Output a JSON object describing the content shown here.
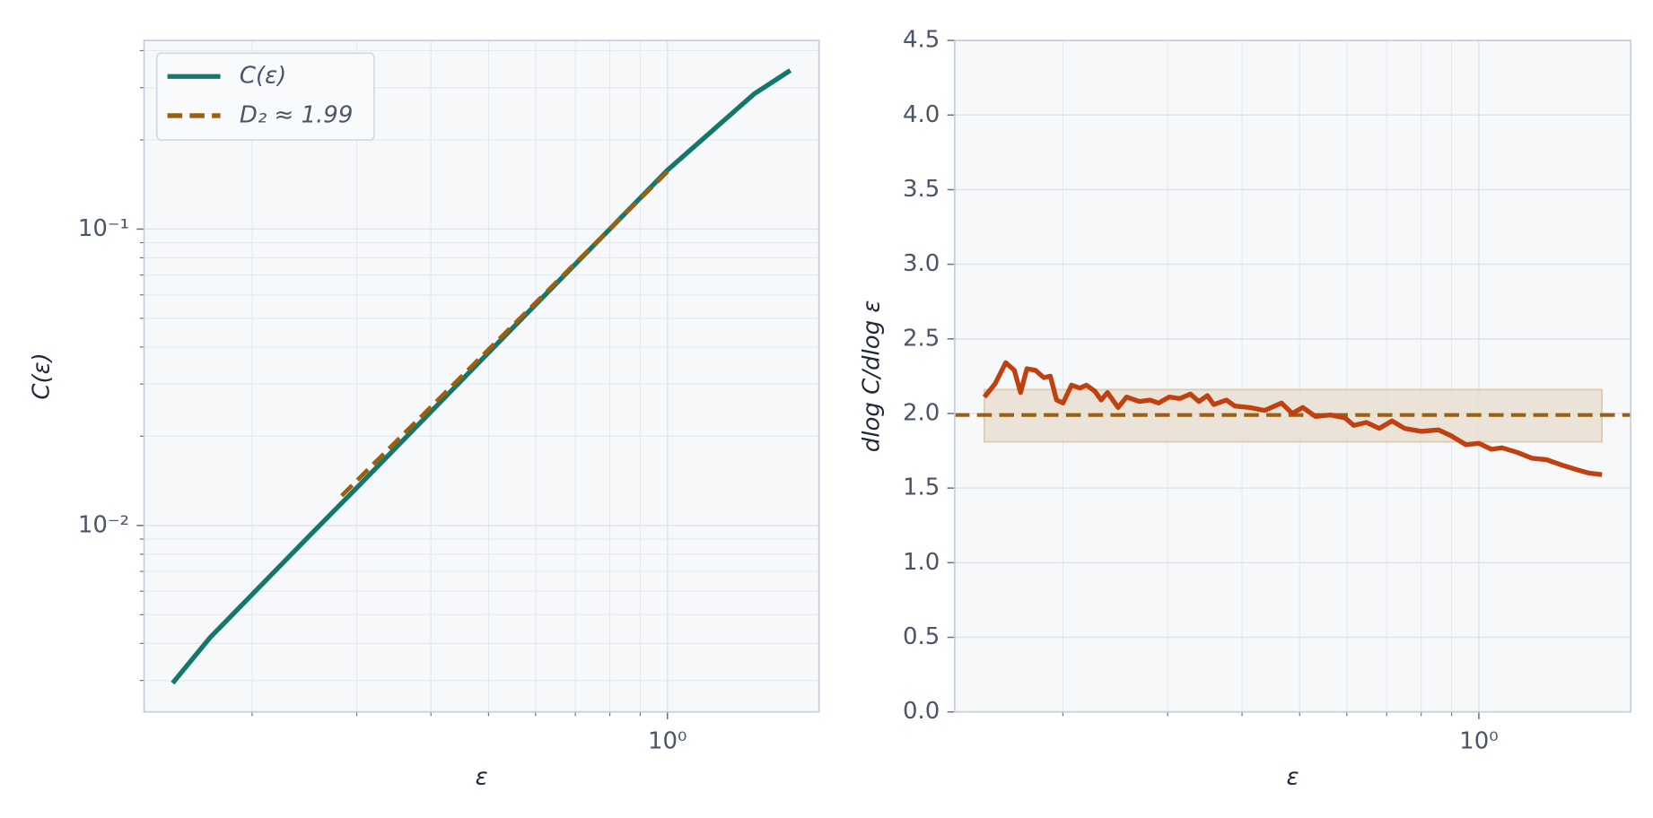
{
  "chart_data": [
    {
      "type": "line",
      "xlabel": "ε",
      "ylabel": "C(ε)",
      "xscale": "log",
      "yscale": "log",
      "grid": true,
      "legend": "upper left",
      "xlim": [
        0.1316,
        1.8
      ],
      "ylim": [
        0.00235,
        0.433
      ],
      "xticks": [
        {
          "value": 1,
          "label": "10⁰"
        }
      ],
      "xminorticks": [
        0.2,
        0.3,
        0.4,
        0.5,
        0.6,
        0.7,
        0.8,
        0.9
      ],
      "yticks": [
        {
          "value": 0.01,
          "label": "10⁻²"
        },
        {
          "value": 0.1,
          "label": "10⁻¹"
        }
      ],
      "yminorticks": [
        0.003,
        0.004,
        0.005,
        0.006,
        0.007,
        0.008,
        0.009,
        0.02,
        0.03,
        0.04,
        0.05,
        0.06,
        0.07,
        0.08,
        0.09,
        0.2,
        0.3,
        0.4
      ],
      "series": [
        {
          "name": "C(ε)",
          "color": "#13776b",
          "dash": false,
          "x": [
            0.147,
            0.17,
            0.2,
            0.25,
            0.3,
            0.4,
            0.5,
            0.6,
            0.7,
            0.8,
            1.0,
            1.2,
            1.4,
            1.61
          ],
          "values": [
            0.00294,
            0.00419,
            0.00585,
            0.00925,
            0.0134,
            0.0242,
            0.0383,
            0.0556,
            0.0762,
            0.1,
            0.158,
            0.218,
            0.286,
            0.343
          ]
        },
        {
          "name": "D₂ ≈ 1.99",
          "color": "#9b5f0f",
          "dash": true,
          "x": [
            0.283,
            1.02
          ],
          "values": [
            0.0126,
            0.1625
          ]
        }
      ]
    },
    {
      "type": "line",
      "xlabel": "ε",
      "ylabel": "dlog C/dlog ε",
      "xscale": "log",
      "yscale": "linear",
      "grid": true,
      "xlim": [
        0.1316,
        1.8
      ],
      "ylim": [
        0,
        4.5
      ],
      "xticks": [
        {
          "value": 1,
          "label": "10⁰"
        }
      ],
      "xminorticks": [
        0.2,
        0.3,
        0.4,
        0.5,
        0.6,
        0.7,
        0.8,
        0.9
      ],
      "yticks": [
        {
          "value": 0,
          "label": "0.0"
        },
        0.5,
        {
          "value": 1,
          "label": "1.0"
        },
        1.5,
        {
          "value": 2,
          "label": "2.0"
        },
        2.5,
        {
          "value": 3,
          "label": "3.0"
        },
        3.5,
        {
          "value": 4,
          "label": "4.0"
        },
        4.5
      ],
      "band": {
        "x": [
          0.1476,
          1.61
        ],
        "y": [
          1.81,
          2.16
        ],
        "color": "#e7dccb"
      },
      "hline": {
        "value": 1.99,
        "color": "#9b5f0f"
      },
      "series": [
        {
          "color": "#c0410f",
          "dash": false,
          "x": [
            0.1476,
            0.1539,
            0.1603,
            0.1657,
            0.1698,
            0.174,
            0.1798,
            0.1858,
            0.1905,
            0.1952,
            0.2001,
            0.2068,
            0.2137,
            0.219,
            0.2263,
            0.2319,
            0.2377,
            0.2476,
            0.2559,
            0.2689,
            0.2802,
            0.2896,
            0.3017,
            0.3145,
            0.3276,
            0.3385,
            0.3498,
            0.3585,
            0.3766,
            0.389,
            0.4121,
            0.4364,
            0.4661,
            0.4857,
            0.506,
            0.5315,
            0.563,
            0.5962,
            0.6163,
            0.6473,
            0.6802,
            0.7145,
            0.7503,
            0.8012,
            0.8556,
            0.8988,
            0.9519,
            1.0,
            1.05,
            1.094,
            1.159,
            1.228,
            1.3,
            1.389,
            1.47,
            1.533,
            1.61
          ],
          "values": [
            2.11,
            2.2,
            2.34,
            2.29,
            2.14,
            2.3,
            2.29,
            2.24,
            2.25,
            2.09,
            2.07,
            2.19,
            2.17,
            2.19,
            2.15,
            2.09,
            2.14,
            2.04,
            2.11,
            2.08,
            2.09,
            2.07,
            2.11,
            2.1,
            2.13,
            2.08,
            2.12,
            2.06,
            2.09,
            2.05,
            2.04,
            2.02,
            2.07,
            2.0,
            2.04,
            1.98,
            1.99,
            1.97,
            1.92,
            1.94,
            1.9,
            1.95,
            1.9,
            1.88,
            1.89,
            1.85,
            1.79,
            1.8,
            1.76,
            1.77,
            1.74,
            1.7,
            1.69,
            1.65,
            1.62,
            1.6,
            1.59
          ]
        }
      ]
    }
  ]
}
